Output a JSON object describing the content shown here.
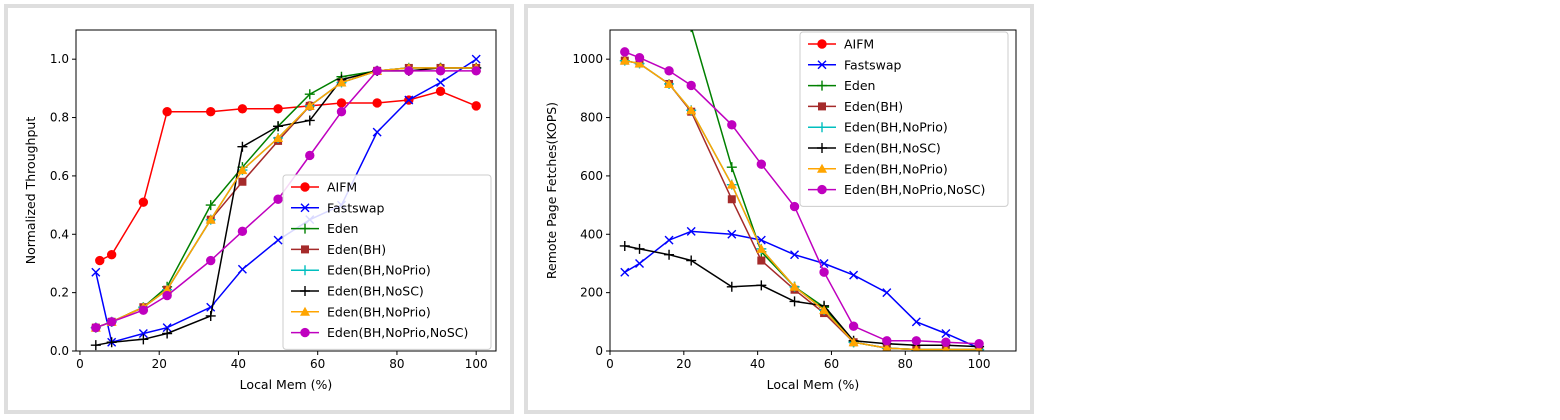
{
  "chart_data": [
    {
      "type": "line",
      "xlabel": "Local Mem (%)",
      "ylabel": "Normalized Throughput",
      "xlim": [
        -1,
        105
      ],
      "ylim": [
        0,
        1.1
      ],
      "xticks": [
        0,
        20,
        40,
        60,
        80,
        100
      ],
      "yticks": [
        0.0,
        0.2,
        0.4,
        0.6,
        0.8,
        1.0
      ],
      "tick_labels_x": [
        "0",
        "20",
        "40",
        "60",
        "80",
        "100"
      ],
      "tick_labels_y": [
        "0.0",
        "0.2",
        "0.4",
        "0.6",
        "0.8",
        "1.0"
      ],
      "legend_position": "lower-right",
      "series": [
        {
          "name": "AIFM",
          "color": "#ff0000",
          "marker": "circle",
          "x": [
            5,
            8,
            16,
            22,
            33,
            41,
            50,
            58,
            66,
            75,
            83,
            91,
            100
          ],
          "y": [
            0.31,
            0.33,
            0.51,
            0.82,
            0.82,
            0.83,
            0.83,
            0.84,
            0.85,
            0.85,
            0.86,
            0.89,
            0.84
          ]
        },
        {
          "name": "Fastswap",
          "color": "#0000ff",
          "marker": "x",
          "x": [
            4,
            8,
            16,
            22,
            33,
            41,
            50,
            58,
            66,
            75,
            83,
            91,
            100
          ],
          "y": [
            0.27,
            0.03,
            0.06,
            0.08,
            0.15,
            0.28,
            0.38,
            0.45,
            0.5,
            0.75,
            0.86,
            0.92,
            1.0
          ]
        },
        {
          "name": "Eden",
          "color": "#008000",
          "marker": "plus",
          "x": [
            4,
            8,
            16,
            22,
            33,
            41,
            50,
            58,
            66,
            75,
            83,
            91,
            100
          ],
          "y": [
            0.08,
            0.1,
            0.15,
            0.22,
            0.5,
            0.63,
            0.77,
            0.88,
            0.94,
            0.96,
            0.97,
            0.97,
            0.97
          ]
        },
        {
          "name": "Eden(BH)",
          "color": "#a52a2a",
          "marker": "square",
          "x": [
            4,
            8,
            16,
            22,
            33,
            41,
            50,
            58,
            66,
            75,
            83,
            91,
            100
          ],
          "y": [
            0.08,
            0.1,
            0.15,
            0.21,
            0.45,
            0.58,
            0.72,
            0.84,
            0.92,
            0.96,
            0.97,
            0.97,
            0.97
          ]
        },
        {
          "name": "Eden(BH,NoPrio)",
          "color": "#00bfbf",
          "marker": "plus",
          "x": [
            4,
            8,
            16,
            22,
            33,
            41,
            50,
            58,
            66,
            75,
            83,
            91,
            100
          ],
          "y": [
            0.08,
            0.1,
            0.15,
            0.21,
            0.45,
            0.62,
            0.73,
            0.84,
            0.92,
            0.96,
            0.97,
            0.97,
            0.97
          ]
        },
        {
          "name": "Eden(BH,NoSC)",
          "color": "#000000",
          "marker": "plus",
          "x": [
            4,
            8,
            16,
            22,
            33,
            41,
            50,
            58,
            66,
            75,
            83,
            91,
            100
          ],
          "y": [
            0.02,
            0.03,
            0.04,
            0.06,
            0.12,
            0.7,
            0.77,
            0.79,
            0.93,
            0.96,
            0.96,
            0.97,
            0.97
          ]
        },
        {
          "name": "Eden(BH,NoPrio)",
          "color": "#ffa500",
          "marker": "triangle",
          "x": [
            4,
            8,
            16,
            22,
            33,
            41,
            50,
            58,
            66,
            75,
            83,
            91,
            100
          ],
          "y": [
            0.08,
            0.1,
            0.15,
            0.21,
            0.45,
            0.62,
            0.73,
            0.84,
            0.92,
            0.96,
            0.97,
            0.97,
            0.97
          ]
        },
        {
          "name": "Eden(BH,NoPrio,NoSC)",
          "color": "#bf00bf",
          "marker": "circle",
          "x": [
            4,
            8,
            16,
            22,
            33,
            41,
            50,
            58,
            66,
            75,
            83,
            91,
            100
          ],
          "y": [
            0.08,
            0.1,
            0.14,
            0.19,
            0.31,
            0.41,
            0.52,
            0.67,
            0.82,
            0.96,
            0.96,
            0.96,
            0.96
          ]
        }
      ]
    },
    {
      "type": "line",
      "xlabel": "Local Mem (%)",
      "ylabel": "Remote Page Fetches(KOPS)",
      "xlim": [
        0,
        110
      ],
      "ylim": [
        0,
        1100
      ],
      "xticks": [
        0,
        20,
        40,
        60,
        80,
        100
      ],
      "yticks": [
        0,
        200,
        400,
        600,
        800,
        1000
      ],
      "tick_labels_x": [
        "0",
        "20",
        "40",
        "60",
        "80",
        "100"
      ],
      "tick_labels_y": [
        "0",
        "200",
        "400",
        "600",
        "800",
        "1000"
      ],
      "legend_position": "upper-right",
      "series": [
        {
          "name": "AIFM",
          "color": "#ff0000",
          "marker": "circle",
          "x": [],
          "y": []
        },
        {
          "name": "Fastswap",
          "color": "#0000ff",
          "marker": "x",
          "x": [
            4,
            8,
            16,
            22,
            33,
            41,
            50,
            58,
            66,
            75,
            83,
            91,
            100
          ],
          "y": [
            270,
            300,
            380,
            410,
            400,
            380,
            330,
            300,
            260,
            200,
            100,
            60,
            10
          ]
        },
        {
          "name": "Eden",
          "color": "#008000",
          "marker": "plus",
          "x": [
            22,
            33,
            41,
            50,
            58,
            66,
            75,
            83,
            91,
            100
          ],
          "y": [
            1110,
            630,
            340,
            220,
            150,
            30,
            10,
            5,
            5,
            5
          ]
        },
        {
          "name": "Eden(BH)",
          "color": "#a52a2a",
          "marker": "square",
          "x": [
            4,
            8,
            16,
            22,
            33,
            41,
            50,
            58,
            66,
            75,
            83,
            91,
            100
          ],
          "y": [
            995,
            985,
            915,
            820,
            520,
            310,
            210,
            130,
            30,
            10,
            5,
            5,
            5
          ]
        },
        {
          "name": "Eden(BH,NoPrio)",
          "color": "#00bfbf",
          "marker": "plus",
          "x": [
            4,
            8,
            16,
            22,
            33,
            41,
            50,
            58,
            66,
            75,
            83,
            91,
            100
          ],
          "y": [
            995,
            985,
            915,
            825,
            570,
            350,
            220,
            140,
            30,
            10,
            5,
            5,
            5
          ]
        },
        {
          "name": "Eden(BH,NoSC)",
          "color": "#000000",
          "marker": "plus",
          "x": [
            4,
            8,
            16,
            22,
            33,
            41,
            50,
            58,
            66,
            75,
            83,
            91,
            100
          ],
          "y": [
            360,
            350,
            330,
            310,
            220,
            225,
            170,
            155,
            35,
            25,
            20,
            20,
            15
          ]
        },
        {
          "name": "Eden(BH,NoPrio)",
          "color": "#ffa500",
          "marker": "triangle",
          "x": [
            4,
            8,
            16,
            22,
            33,
            41,
            50,
            58,
            66,
            75,
            83,
            91,
            100
          ],
          "y": [
            995,
            985,
            915,
            825,
            570,
            350,
            220,
            140,
            30,
            10,
            5,
            5,
            5
          ]
        },
        {
          "name": "Eden(BH,NoPrio,NoSC)",
          "color": "#bf00bf",
          "marker": "circle",
          "x": [
            4,
            8,
            16,
            22,
            33,
            41,
            50,
            58,
            66,
            75,
            83,
            91,
            100
          ],
          "y": [
            1025,
            1005,
            960,
            910,
            775,
            640,
            495,
            270,
            85,
            35,
            35,
            30,
            25
          ]
        }
      ]
    }
  ]
}
